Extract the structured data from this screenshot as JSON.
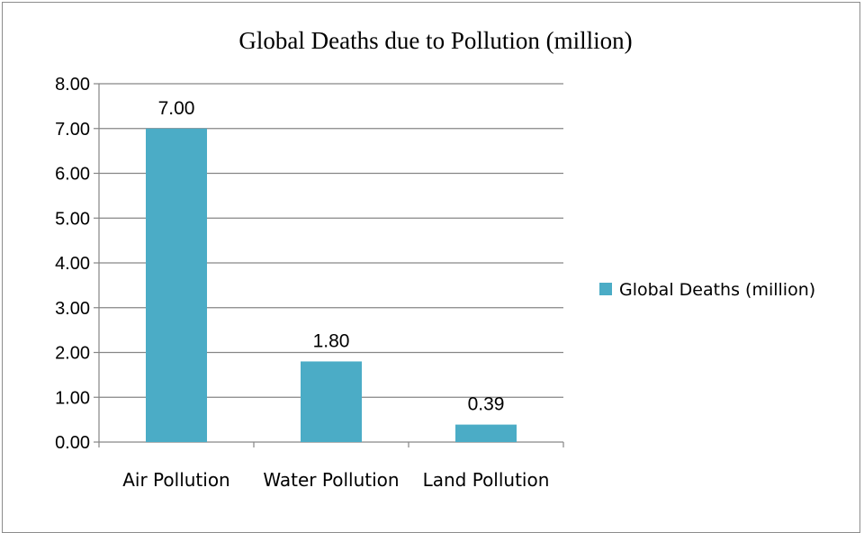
{
  "chart_data": {
    "type": "bar",
    "title": "Global Deaths due to Pollution (million)",
    "categories": [
      "Air Pollution",
      "Water Pollution",
      "Land Pollution"
    ],
    "series": [
      {
        "name": "Global Deaths (million)",
        "values": [
          7.0,
          1.8,
          0.39
        ],
        "data_labels": [
          "7.00",
          "1.80",
          "0.39"
        ],
        "color": "#4bacc6"
      }
    ],
    "yticks": [
      "0.00",
      "1.00",
      "2.00",
      "3.00",
      "4.00",
      "5.00",
      "6.00",
      "7.00",
      "8.00"
    ],
    "ylim": [
      0,
      8
    ],
    "grid": true,
    "legend_position": "right",
    "xlabel": "",
    "ylabel": ""
  }
}
